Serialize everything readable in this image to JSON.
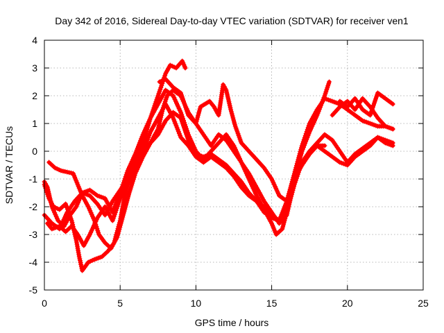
{
  "chart_data": {
    "type": "scatter",
    "title": "Day 342 of 2016, Sidereal Day-to-day VTEC variation (SDTVAR) for receiver ven1",
    "xlabel": "GPS time / hours",
    "ylabel": "SDTVAR / TECUs",
    "xlim": [
      0,
      25
    ],
    "ylim": [
      -5,
      4
    ],
    "xticks": [
      "0",
      "5",
      "10",
      "15",
      "20",
      "25"
    ],
    "yticks": [
      "-5",
      "-4",
      "-3",
      "-2",
      "-1",
      "0",
      "1",
      "2",
      "3",
      "4"
    ],
    "grid": true,
    "marker": "+",
    "series_color": "#ff0000",
    "series": [
      {
        "values": [
          [
            0.0,
            -2.3
          ],
          [
            0.5,
            -2.6
          ],
          [
            1.0,
            -2.8
          ],
          [
            1.5,
            -2.2
          ],
          [
            2.0,
            -1.8
          ],
          [
            2.5,
            -1.5
          ],
          [
            3.0,
            -1.6
          ],
          [
            3.5,
            -1.9
          ],
          [
            4.0,
            -2.3
          ],
          [
            4.5,
            -1.8
          ],
          [
            5.0,
            -1.4
          ],
          [
            5.5,
            -1.0
          ],
          [
            6.0,
            -0.4
          ],
          [
            6.5,
            0.3
          ],
          [
            7.0,
            1.2
          ],
          [
            7.5,
            2.0
          ],
          [
            8.0,
            2.8
          ],
          [
            8.3,
            3.1
          ],
          [
            8.7,
            3.0
          ],
          [
            9.1,
            3.25
          ],
          [
            9.3,
            3.0
          ]
        ]
      },
      {
        "values": [
          [
            0.0,
            -1.1
          ],
          [
            0.2,
            -1.3
          ],
          [
            0.5,
            -2.0
          ],
          [
            0.9,
            -2.5
          ],
          [
            1.3,
            -2.7
          ],
          [
            1.7,
            -2.3
          ],
          [
            2.1,
            -2.0
          ],
          [
            2.5,
            -1.5
          ],
          [
            3.0,
            -1.4
          ],
          [
            3.5,
            -1.6
          ],
          [
            4.0,
            -1.7
          ],
          [
            4.5,
            -2.2
          ],
          [
            5.0,
            -1.5
          ],
          [
            5.5,
            -0.7
          ],
          [
            6.0,
            -0.1
          ],
          [
            6.5,
            0.6
          ],
          [
            7.0,
            1.2
          ],
          [
            7.5,
            1.7
          ],
          [
            8.0,
            2.2
          ],
          [
            8.5,
            2.0
          ],
          [
            9.0,
            1.4
          ],
          [
            9.5,
            0.6
          ],
          [
            10.0,
            0.0
          ],
          [
            10.5,
            -0.3
          ],
          [
            11.0,
            0.0
          ],
          [
            11.5,
            0.3
          ],
          [
            12.0,
            0.6
          ],
          [
            12.5,
            0.2
          ],
          [
            13.0,
            -0.4
          ],
          [
            13.5,
            -1.0
          ],
          [
            14.0,
            -1.6
          ],
          [
            14.5,
            -2.1
          ],
          [
            15.0,
            -2.6
          ],
          [
            15.3,
            -3.0
          ],
          [
            15.7,
            -2.8
          ],
          [
            16.0,
            -2.2
          ],
          [
            16.5,
            -1.2
          ],
          [
            17.0,
            -0.4
          ],
          [
            17.5,
            0.0
          ],
          [
            18.0,
            0.3
          ],
          [
            18.5,
            0.6
          ],
          [
            19.0,
            0.4
          ],
          [
            19.5,
            0.0
          ],
          [
            20.0,
            -0.4
          ],
          [
            20.5,
            -0.1
          ],
          [
            21.0,
            0.1
          ],
          [
            21.5,
            0.3
          ],
          [
            22.0,
            0.5
          ],
          [
            22.5,
            0.3
          ],
          [
            23.0,
            0.2
          ]
        ]
      },
      {
        "values": [
          [
            0.2,
            -2.6
          ],
          [
            0.5,
            -2.8
          ],
          [
            1.0,
            -2.7
          ],
          [
            1.4,
            -2.9
          ],
          [
            1.8,
            -2.7
          ],
          [
            2.2,
            -3.0
          ],
          [
            2.6,
            -3.4
          ],
          [
            3.0,
            -3.0
          ],
          [
            3.5,
            -2.4
          ],
          [
            4.0,
            -2.0
          ],
          [
            4.5,
            -2.5
          ],
          [
            5.0,
            -1.7
          ],
          [
            5.5,
            -1.2
          ],
          [
            6.0,
            -0.6
          ],
          [
            6.5,
            0.0
          ],
          [
            7.0,
            0.7
          ],
          [
            7.5,
            1.2
          ],
          [
            8.0,
            1.7
          ],
          [
            8.5,
            1.2
          ],
          [
            9.0,
            0.5
          ],
          [
            9.5,
            0.2
          ],
          [
            10.0,
            -0.2
          ],
          [
            10.5,
            -0.4
          ],
          [
            11.0,
            -0.2
          ],
          [
            11.5,
            -0.4
          ],
          [
            12.0,
            -0.6
          ],
          [
            12.5,
            -0.9
          ],
          [
            13.0,
            -1.3
          ],
          [
            13.5,
            -1.6
          ],
          [
            14.0,
            -1.8
          ],
          [
            14.5,
            -2.0
          ],
          [
            15.0,
            -2.3
          ],
          [
            15.5,
            -2.5
          ],
          [
            16.0,
            -2.0
          ],
          [
            16.5,
            -0.9
          ],
          [
            17.0,
            -0.5
          ],
          [
            17.5,
            -0.1
          ],
          [
            18.0,
            0.2
          ],
          [
            18.5,
            0.0
          ],
          [
            19.0,
            -0.2
          ],
          [
            19.5,
            -0.4
          ],
          [
            20.0,
            -0.5
          ],
          [
            20.5,
            -0.2
          ],
          [
            21.0,
            0.0
          ],
          [
            21.5,
            0.2
          ],
          [
            22.0,
            0.5
          ],
          [
            22.5,
            0.4
          ],
          [
            23.0,
            0.3
          ]
        ]
      },
      {
        "values": [
          [
            0.0,
            -1.2
          ],
          [
            0.3,
            -1.7
          ],
          [
            0.6,
            -2.0
          ],
          [
            1.0,
            -2.1
          ],
          [
            1.4,
            -1.9
          ],
          [
            1.8,
            -2.5
          ],
          [
            2.1,
            -3.2
          ],
          [
            2.3,
            -3.8
          ],
          [
            2.5,
            -4.3
          ],
          [
            2.9,
            -4.0
          ],
          [
            3.3,
            -3.9
          ],
          [
            3.8,
            -3.8
          ],
          [
            4.2,
            -3.6
          ],
          [
            4.6,
            -3.3
          ],
          [
            5.0,
            -2.5
          ],
          [
            5.3,
            -1.6
          ],
          [
            5.6,
            -1.0
          ],
          [
            6.0,
            -0.6
          ],
          [
            6.5,
            0.0
          ],
          [
            7.0,
            0.3
          ],
          [
            7.5,
            0.6
          ],
          [
            8.0,
            1.1
          ],
          [
            8.5,
            1.4
          ],
          [
            9.0,
            1.2
          ],
          [
            9.5,
            0.4
          ],
          [
            10.0,
            -0.1
          ],
          [
            10.5,
            -0.2
          ],
          [
            11.0,
            -0.1
          ],
          [
            11.5,
            -0.3
          ],
          [
            12.0,
            -0.5
          ],
          [
            12.5,
            -0.8
          ],
          [
            13.0,
            -1.1
          ],
          [
            13.5,
            -1.5
          ],
          [
            14.0,
            -1.8
          ],
          [
            14.5,
            -2.2
          ],
          [
            15.0,
            -2.4
          ],
          [
            15.5,
            -2.5
          ],
          [
            16.0,
            -1.8
          ],
          [
            16.5,
            -1.0
          ],
          [
            17.0,
            -0.5
          ],
          [
            17.5,
            -0.1
          ],
          [
            18.0,
            0.2
          ],
          [
            18.5,
            0.2
          ]
        ]
      },
      {
        "values": [
          [
            0.3,
            -0.4
          ],
          [
            0.7,
            -0.6
          ],
          [
            1.1,
            -0.7
          ],
          [
            1.5,
            -0.75
          ],
          [
            1.9,
            -0.8
          ],
          [
            2.2,
            -1.2
          ],
          [
            2.5,
            -1.6
          ],
          [
            2.9,
            -2.0
          ],
          [
            3.3,
            -2.5
          ],
          [
            3.6,
            -3.0
          ],
          [
            4.0,
            -3.3
          ],
          [
            4.4,
            -3.5
          ],
          [
            4.8,
            -3.1
          ],
          [
            5.2,
            -2.3
          ],
          [
            5.6,
            -1.5
          ],
          [
            6.0,
            -0.8
          ],
          [
            6.5,
            -0.2
          ],
          [
            7.0,
            0.3
          ],
          [
            7.5,
            0.8
          ],
          [
            7.8,
            1.5
          ],
          [
            8.1,
            2.0
          ],
          [
            8.5,
            2.2
          ],
          [
            9.0,
            2.0
          ],
          [
            9.5,
            1.4
          ],
          [
            10.0,
            1.0
          ],
          [
            10.5,
            0.6
          ],
          [
            11.0,
            0.2
          ],
          [
            11.5,
            0.6
          ],
          [
            12.0,
            0.4
          ],
          [
            12.5,
            0.0
          ],
          [
            13.0,
            -0.4
          ],
          [
            13.5,
            -0.8
          ],
          [
            14.0,
            -1.3
          ],
          [
            14.5,
            -1.8
          ],
          [
            15.0,
            -2.2
          ],
          [
            15.5,
            -2.6
          ],
          [
            16.0,
            -2.3
          ],
          [
            16.5,
            -1.0
          ],
          [
            17.0,
            0.0
          ],
          [
            17.5,
            0.7
          ],
          [
            18.0,
            1.3
          ],
          [
            18.5,
            2.0
          ],
          [
            18.8,
            2.5
          ]
        ]
      },
      {
        "values": [
          [
            7.6,
            2.5
          ],
          [
            8.0,
            2.6
          ],
          [
            8.5,
            2.3
          ],
          [
            9.0,
            2.1
          ],
          [
            9.5,
            1.3
          ],
          [
            10.0,
            1.0
          ],
          [
            10.3,
            1.6
          ],
          [
            10.6,
            1.7
          ],
          [
            10.9,
            1.8
          ],
          [
            11.2,
            1.6
          ],
          [
            11.5,
            1.3
          ],
          [
            11.8,
            2.4
          ],
          [
            12.0,
            2.2
          ],
          [
            12.3,
            1.5
          ],
          [
            12.6,
            0.9
          ],
          [
            13.0,
            0.3
          ],
          [
            13.5,
            0.0
          ],
          [
            14.0,
            -0.3
          ],
          [
            14.5,
            -0.6
          ],
          [
            15.0,
            -1.0
          ],
          [
            15.5,
            -1.6
          ],
          [
            16.0,
            -1.8
          ],
          [
            16.5,
            -0.8
          ],
          [
            17.0,
            0.2
          ],
          [
            17.5,
            1.0
          ],
          [
            18.0,
            1.5
          ],
          [
            18.5,
            1.9
          ],
          [
            19.0,
            1.8
          ],
          [
            19.5,
            1.7
          ],
          [
            20.0,
            1.5
          ],
          [
            20.5,
            1.3
          ],
          [
            21.0,
            1.1
          ],
          [
            21.5,
            1.0
          ],
          [
            22.0,
            0.9
          ],
          [
            22.5,
            0.9
          ],
          [
            23.0,
            0.8
          ]
        ]
      },
      {
        "values": [
          [
            19.0,
            1.3
          ],
          [
            19.5,
            1.6
          ],
          [
            20.0,
            1.8
          ],
          [
            20.5,
            1.5
          ],
          [
            21.0,
            1.9
          ],
          [
            21.5,
            1.6
          ],
          [
            22.0,
            1.2
          ],
          [
            22.5,
            0.9
          ],
          [
            23.0,
            0.8
          ]
        ]
      },
      {
        "values": [
          [
            19.5,
            1.8
          ],
          [
            20.0,
            1.6
          ],
          [
            20.5,
            1.9
          ],
          [
            21.0,
            1.5
          ],
          [
            21.5,
            1.3
          ],
          [
            22.0,
            2.1
          ],
          [
            22.5,
            1.9
          ],
          [
            23.0,
            1.7
          ]
        ]
      }
    ]
  }
}
